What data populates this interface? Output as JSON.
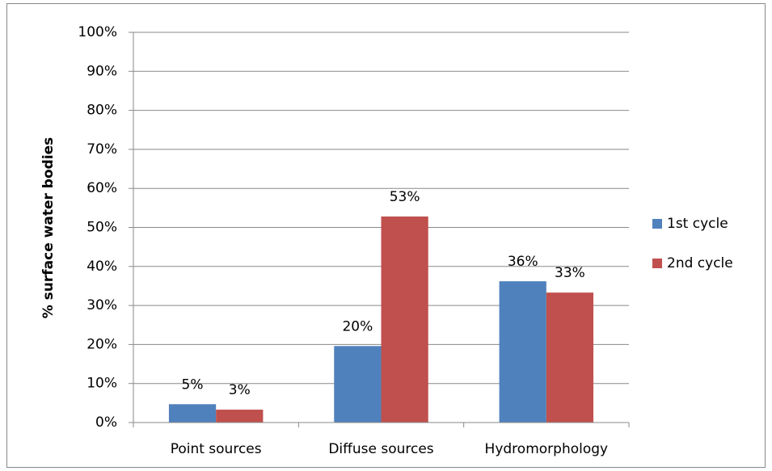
{
  "chart_data": {
    "type": "bar",
    "y_label": "% surface water bodies",
    "categories": [
      "Point sources",
      "Diffuse sources",
      "Hydromorphology"
    ],
    "series": [
      {
        "name": "1st cycle",
        "color": "#4f81bd",
        "values": [
          4.7,
          19.6,
          36.2
        ],
        "value_labels": [
          "5%",
          "20%",
          "36%"
        ]
      },
      {
        "name": "2nd cycle",
        "color": "#c0504d",
        "values": [
          3.3,
          52.8,
          33.3
        ],
        "value_labels": [
          "3%",
          "53%",
          "33%"
        ]
      }
    ],
    "ylim": [
      0,
      100
    ],
    "yticks": [
      {
        "value": 0,
        "label": "0%"
      },
      {
        "value": 10,
        "label": "10%"
      },
      {
        "value": 20,
        "label": "20%"
      },
      {
        "value": 30,
        "label": "30%"
      },
      {
        "value": 40,
        "label": "40%"
      },
      {
        "value": 50,
        "label": "50%"
      },
      {
        "value": 60,
        "label": "60%"
      },
      {
        "value": 70,
        "label": "70%"
      },
      {
        "value": 80,
        "label": "80%"
      },
      {
        "value": 90,
        "label": "90%"
      },
      {
        "value": 100,
        "label": "100%"
      }
    ],
    "grid": true,
    "legend": "right"
  }
}
